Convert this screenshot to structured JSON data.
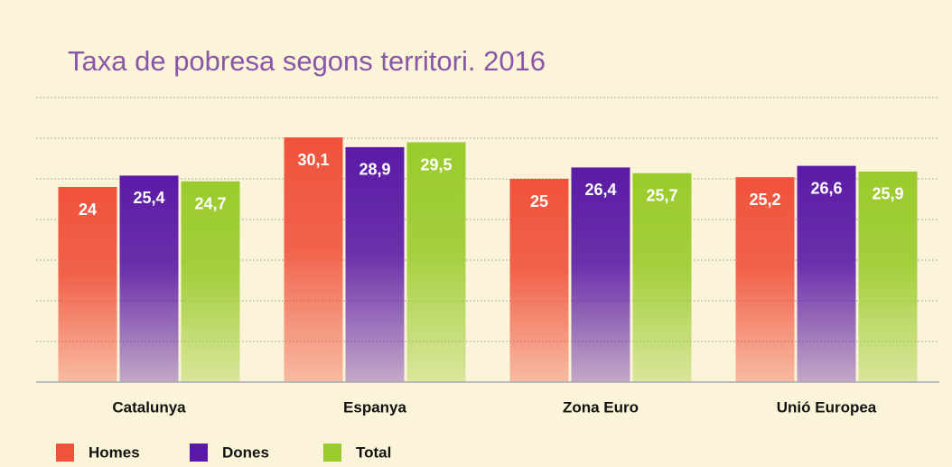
{
  "chart_data": {
    "type": "bar",
    "title": "Taxa de pobresa segons territori. 2016",
    "categories": [
      "Catalunya",
      "Espanya",
      "Zona Euro",
      "Unió Europea"
    ],
    "series": [
      {
        "name": "Homes",
        "color": "#f0523c",
        "values": [
          24,
          30.1,
          25,
          25.2
        ],
        "value_labels": [
          "24",
          "30,1",
          "25",
          "25,2"
        ]
      },
      {
        "name": "Dones",
        "color": "#5b1aa6",
        "values": [
          25.4,
          28.9,
          26.4,
          26.6
        ],
        "value_labels": [
          "25,4",
          "28,9",
          "26,4",
          "26,6"
        ]
      },
      {
        "name": "Total",
        "color": "#9acb2c",
        "values": [
          24.7,
          29.5,
          25.7,
          25.9
        ],
        "value_labels": [
          "24,7",
          "29,5",
          "25,7",
          "25,9"
        ]
      }
    ],
    "ylim": [
      0,
      35
    ],
    "yticks": [
      0,
      5,
      10,
      15,
      20,
      25,
      30,
      35
    ],
    "grid": true,
    "legend": "bottom-left"
  }
}
